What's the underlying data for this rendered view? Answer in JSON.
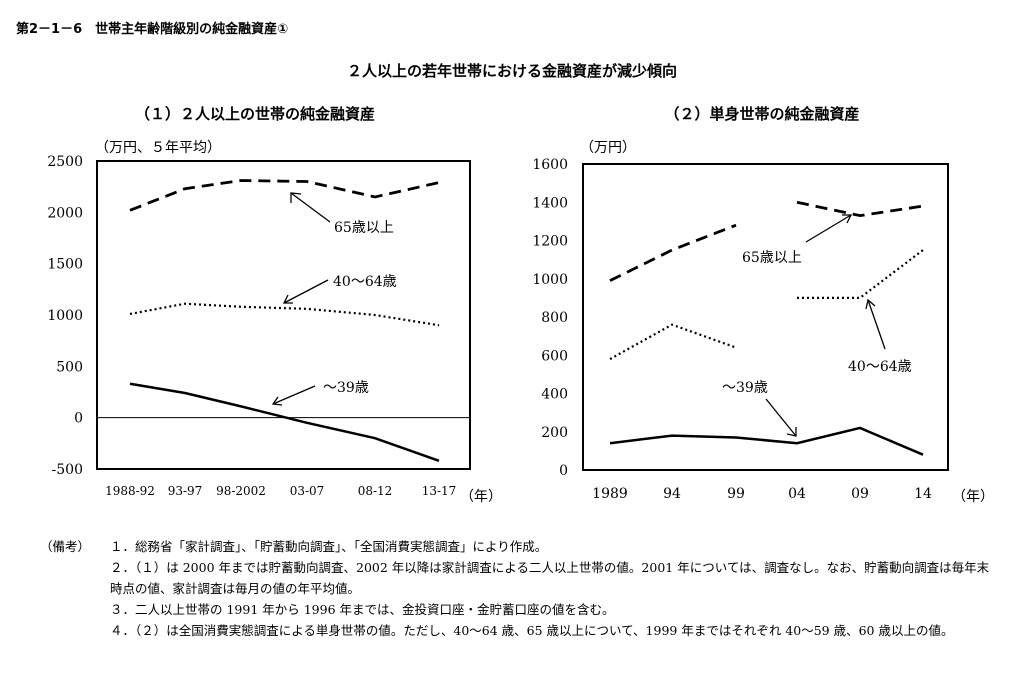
{
  "figure_label": "第2－1－6　世帯主年齢階級別の純金融資産①",
  "main_title": "２人以上の若年世帯における金融資産が減少傾向",
  "chart_data": [
    {
      "type": "line",
      "title": "（１）２人以上の世帯の純金融資産",
      "unit_label": "（万円、５年平均）",
      "xlabel": "（年）",
      "categories": [
        "1988-92",
        "93-97",
        "98-2002",
        "03-07",
        "08-12",
        "13-17"
      ],
      "ylim": [
        -500,
        2500
      ],
      "yticks": [
        2500,
        2000,
        1500,
        1000,
        500,
        0,
        -500
      ],
      "series": [
        {
          "name": "65歳以上",
          "style": "dashed",
          "values": [
            2020,
            2230,
            2310,
            2300,
            2150,
            2290
          ]
        },
        {
          "name": "40～64歳",
          "style": "dotted",
          "values": [
            1010,
            1110,
            1080,
            1060,
            1000,
            900
          ]
        },
        {
          "name": "～39歳",
          "style": "solid",
          "values": [
            330,
            240,
            110,
            -50,
            -200,
            -420
          ]
        }
      ]
    },
    {
      "type": "line",
      "title": "（２）単身世帯の純金融資産",
      "unit_label": "（万円）",
      "xlabel": "（年）",
      "categories": [
        "1989",
        "94",
        "99",
        "04",
        "09",
        "14"
      ],
      "ylim": [
        0,
        1600
      ],
      "yticks": [
        1600,
        1400,
        1200,
        1000,
        800,
        600,
        400,
        200,
        0
      ],
      "series": [
        {
          "name": "65歳以上",
          "style": "dashed",
          "values": [
            990,
            1150,
            1280,
            1400,
            1330,
            1380
          ]
        },
        {
          "name": "40～64歳",
          "style": "dotted",
          "values": [
            580,
            760,
            640,
            900,
            900,
            1150
          ]
        },
        {
          "name": "～39歳",
          "style": "solid",
          "values": [
            140,
            180,
            170,
            140,
            220,
            80
          ]
        }
      ]
    }
  ],
  "notes_label": "（備考）",
  "notes": [
    "１．総務省「家計調査」、「貯蓄動向調査」、「全国消費実態調査」により作成。",
    "２．（１）は 2000 年までは貯蓄動向調査、2002 年以降は家計調査による二人以上世帯の値。2001 年については、調査なし。なお、貯蓄動向調査は毎年末時点の値、家計調査は毎月の値の年平均値。",
    "３．二人以上世帯の 1991 年から 1996 年までは、金投資口座・金貯蓄口座の値を含む。",
    "４．（２）は全国消費実態調査による単身世帯の値。ただし、40～64 歳、65 歳以上について、1999 年まではそれぞれ 40～59 歳、60 歳以上の値。"
  ]
}
